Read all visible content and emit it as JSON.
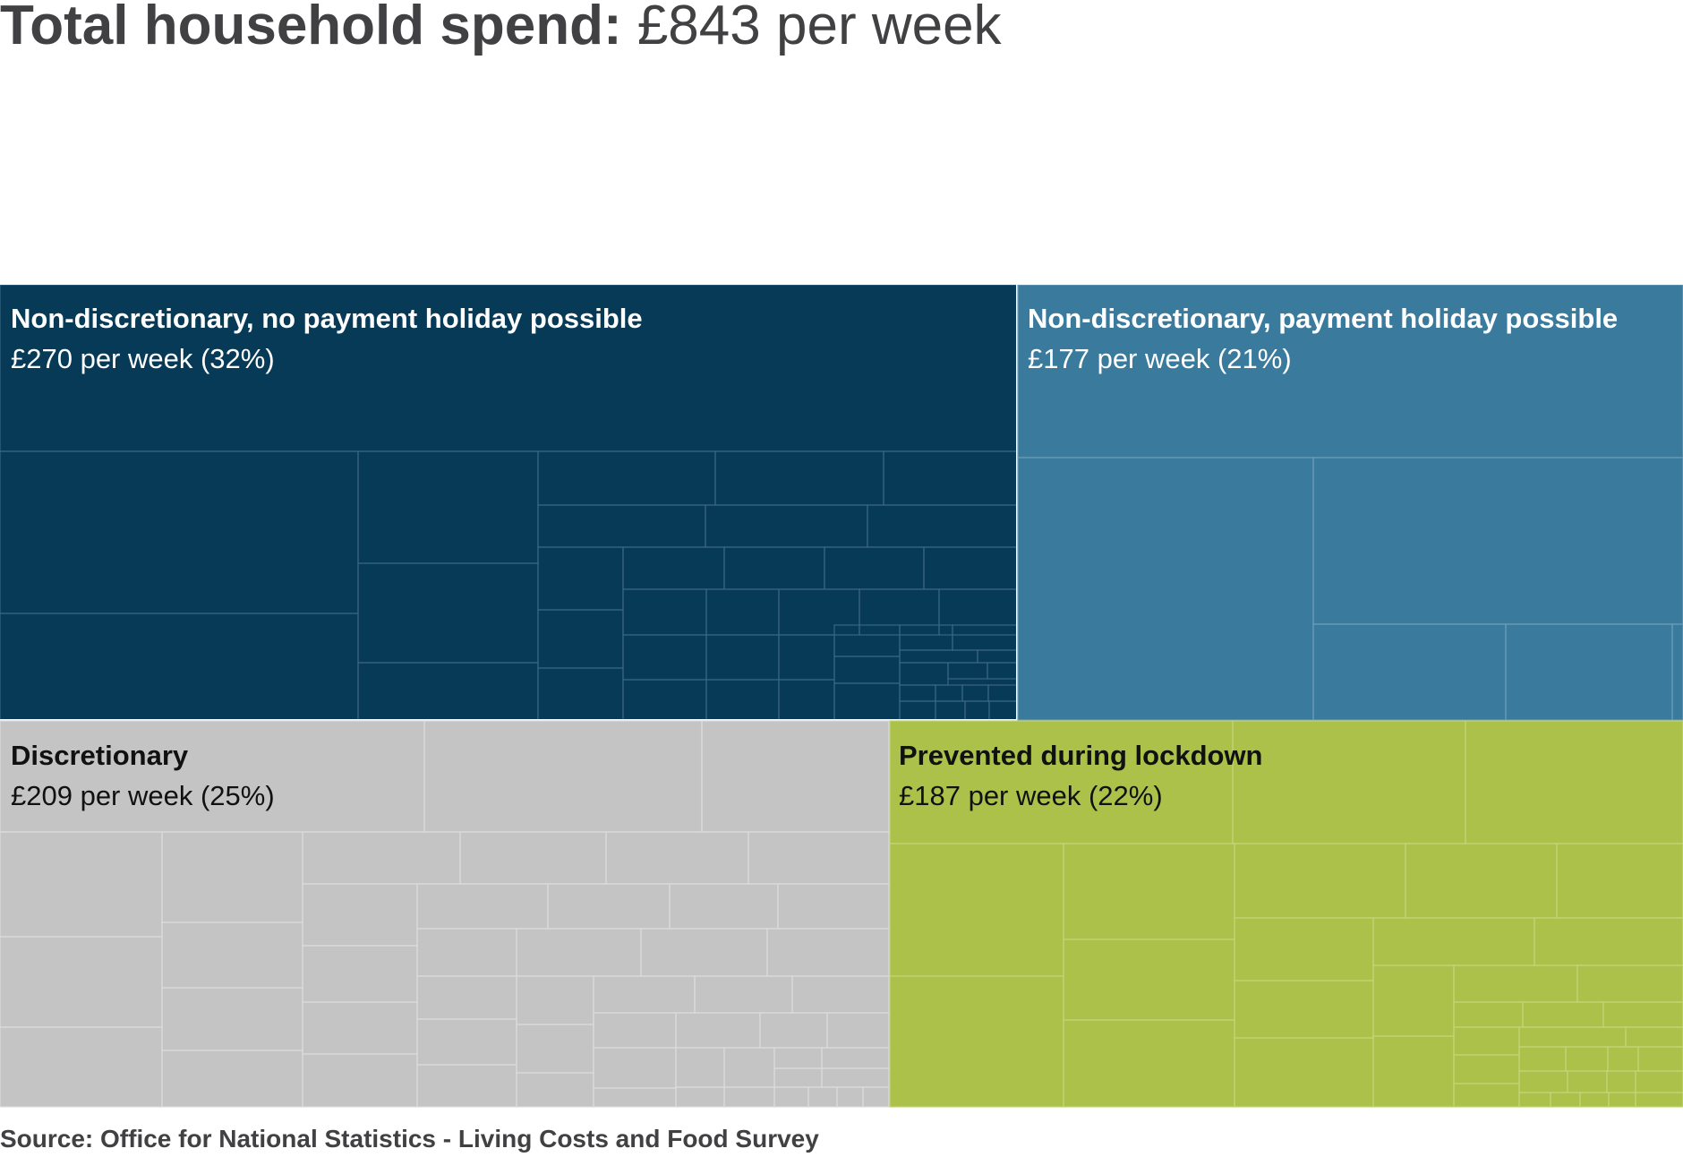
{
  "header": {
    "title_bold": "Total household spend:",
    "title_value": "£843 per week"
  },
  "chart_data": {
    "type": "treemap",
    "title": "Total household spend: £843 per week",
    "unit": "£ per week",
    "total": 843,
    "groups": [
      {
        "name": "Non-discretionary, no payment holiday possible",
        "label": "£270 per week (32%)",
        "value": 270,
        "percent": 32,
        "color": "#063a57",
        "line": "#3b6680",
        "text_color": "#ffffff"
      },
      {
        "name": "Non-discretionary, payment holiday possible",
        "label": "£177 per week (21%)",
        "value": 177,
        "percent": 21,
        "color": "#3a7a9c",
        "line": "#6d9db8",
        "text_color": "#ffffff"
      },
      {
        "name": "Discretionary",
        "label": "£209 per week (25%)",
        "value": 209,
        "percent": 25,
        "color": "#c4c4c4",
        "line": "#dcdcdc",
        "text_color": "#111111"
      },
      {
        "name": "Prevented during lockdown",
        "label": "£187 per week (22%)",
        "value": 187,
        "percent": 22,
        "color": "#acc14a",
        "line": "#c4d47a",
        "text_color": "#111111"
      }
    ]
  },
  "footer": {
    "source": "Source: Office for National Statistics - Living Costs and Food Survey"
  }
}
